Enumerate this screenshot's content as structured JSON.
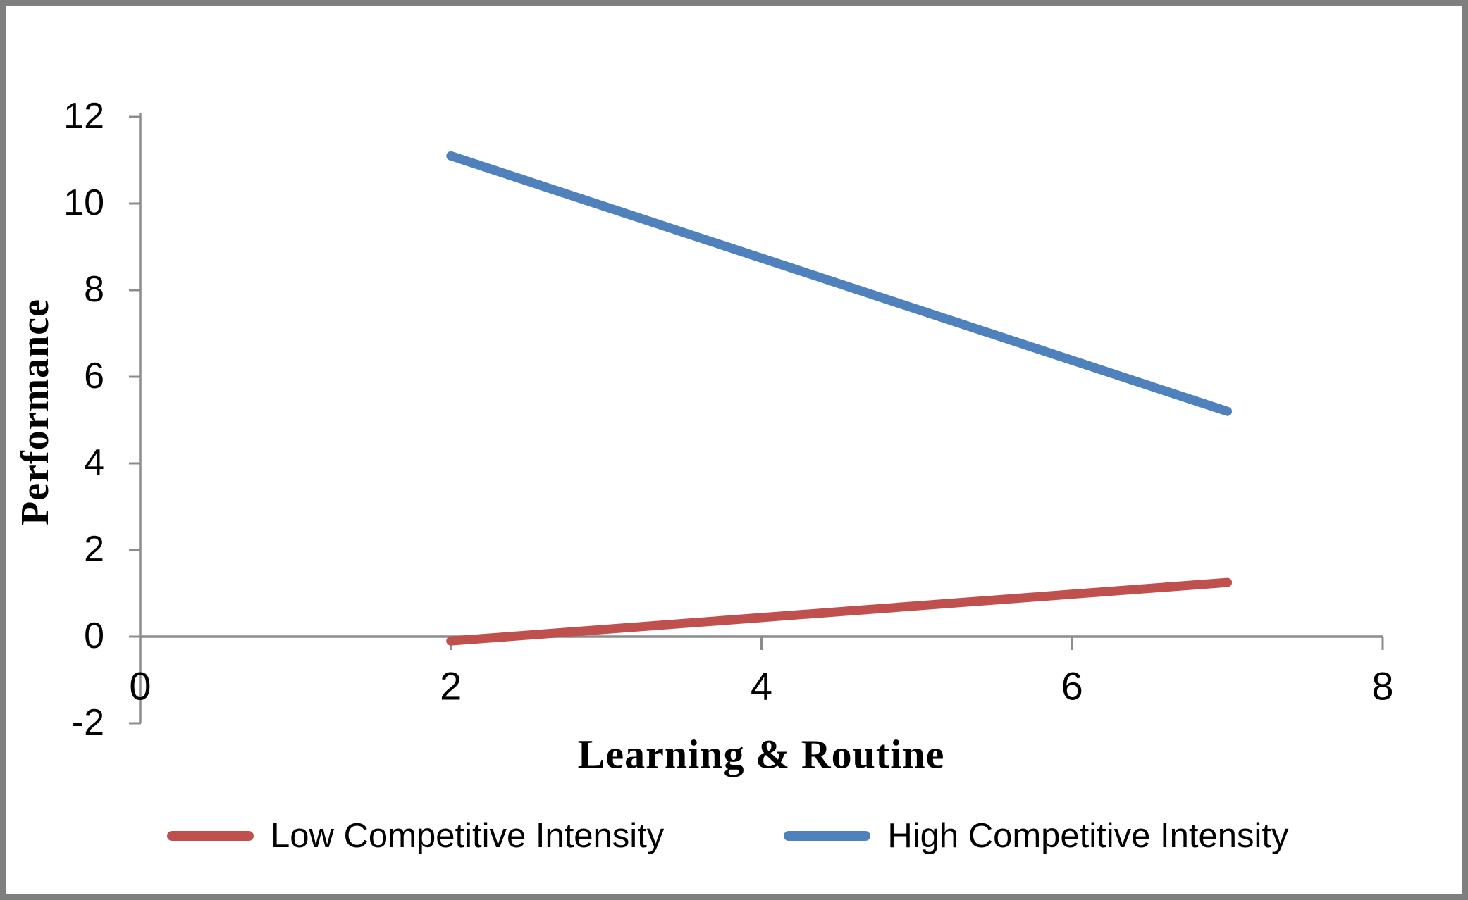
{
  "chart_data": {
    "type": "line",
    "title": "",
    "xlabel": "Learning & Routine",
    "ylabel": "Performance",
    "xlim": [
      0,
      8
    ],
    "ylim": [
      -2,
      12
    ],
    "x_ticks": [
      0,
      2,
      4,
      6,
      8
    ],
    "y_ticks": [
      -2,
      0,
      2,
      4,
      6,
      8,
      10,
      12
    ],
    "grid": false,
    "legend_position": "bottom",
    "series": [
      {
        "name": "Low Competitive Intensity",
        "color": "#C0504D",
        "points": [
          {
            "x": 2,
            "y": -0.1
          },
          {
            "x": 7,
            "y": 1.25
          }
        ]
      },
      {
        "name": "High Competitive Intensity",
        "color": "#4F81BD",
        "points": [
          {
            "x": 2,
            "y": 11.1
          },
          {
            "x": 7,
            "y": 5.2
          }
        ]
      }
    ]
  },
  "colors": {
    "background": "#FFFFFF",
    "border": "#7F7F7F",
    "axis": "#8C8C8C",
    "text": "#000000"
  }
}
